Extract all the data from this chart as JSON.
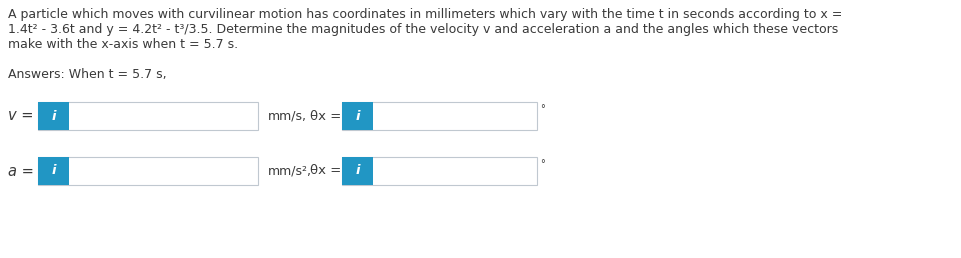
{
  "title_lines": [
    "A particle which moves with curvilinear motion has coordinates in millimeters which vary with the time t in seconds according to x =",
    "1.4t² - 3.6t and y = 4.2t² - t³/3.5. Determine the magnitudes of the velocity v and acceleration a and the angles which these vectors",
    "make with the x-axis when t = 5.7 s."
  ],
  "answers_label": "Answers: When t = 5.7 s,",
  "row1_left_label": "v =",
  "row1_mid_label": "mm/s,",
  "row1_theta_label": "θx =",
  "row1_degree": "°",
  "row2_left_label": "a =",
  "row2_mid_label": "mm/s²,",
  "row2_theta_label": "θx =",
  "row2_degree": "°",
  "blue_color": "#2196c4",
  "box_edge_color": "#c0c8d0",
  "box_fill_color": "#ffffff",
  "text_color": "#3a3a3a",
  "background_color": "#ffffff",
  "i_text": "i",
  "i_text_color": "#ffffff",
  "fontsize_body": 9.0,
  "fontsize_label": 10.5,
  "fontsize_i": 9.5,
  "fontsize_degree": 7
}
